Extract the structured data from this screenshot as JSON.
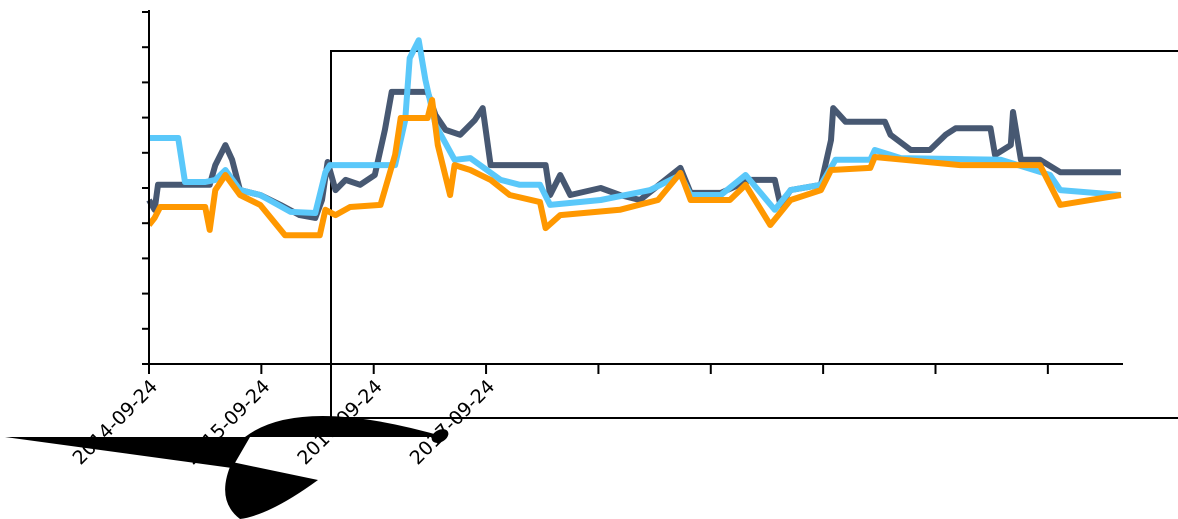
{
  "chart_data": {
    "type": "line",
    "xlim": [
      0,
      8.66
    ],
    "xticks": [
      {
        "value": 0,
        "label": "2014-09-24"
      },
      {
        "value": 1,
        "label": "2015-09-24"
      },
      {
        "value": 2,
        "label": "2016-09-24"
      },
      {
        "value": 3,
        "label": "2017-09-24"
      },
      4,
      5,
      6,
      7,
      8
    ],
    "ylim": [
      0,
      100
    ],
    "yticks": [
      0,
      10,
      20,
      30,
      40,
      50,
      60,
      70,
      80,
      90,
      100
    ],
    "ytick_labels_shown": false,
    "series": [
      {
        "color": "#475872",
        "x": [
          0,
          0.05,
          0.08,
          0.12,
          0.54,
          0.59,
          0.68,
          0.74,
          0.81,
          0.99,
          1.17,
          1.34,
          1.48,
          1.54,
          1.59,
          1.66,
          1.75,
          1.88,
          2.01,
          2.1,
          2.16,
          2.48,
          2.55,
          2.64,
          2.77,
          2.9,
          2.97,
          3.04,
          3.26,
          3.53,
          3.57,
          3.66,
          3.75,
          4.02,
          4.19,
          4.37,
          4.73,
          4.82,
          5.09,
          5.35,
          5.57,
          5.62,
          5.71,
          5.98,
          6.07,
          6.09,
          6.2,
          6.55,
          6.6,
          6.78,
          6.95,
          7.09,
          7.18,
          7.49,
          7.53,
          7.67,
          7.69,
          7.76,
          7.93,
          8.11,
          8.65
        ],
        "values": [
          46.6,
          43.8,
          50.9,
          50.9,
          50.9,
          56.5,
          62.2,
          58.0,
          49.4,
          48.0,
          45.2,
          42.3,
          41.5,
          46.6,
          57.4,
          49.4,
          52.3,
          50.9,
          53.7,
          66.5,
          77.3,
          77.3,
          70.7,
          66.5,
          65.1,
          69.3,
          72.7,
          56.5,
          56.5,
          56.5,
          48.0,
          53.7,
          48.0,
          50.0,
          48.0,
          46.6,
          55.7,
          48.6,
          48.6,
          52.3,
          52.3,
          45.2,
          49.4,
          50.9,
          63.6,
          72.7,
          68.8,
          68.8,
          65.1,
          60.8,
          60.8,
          65.1,
          67.0,
          67.0,
          59.4,
          62.2,
          71.6,
          58.0,
          58.0,
          54.5,
          54.5
        ]
      },
      {
        "color": "#5ac8fa",
        "x": [
          0,
          0.26,
          0.32,
          0.5,
          0.59,
          0.68,
          0.81,
          0.99,
          1.26,
          1.48,
          1.57,
          1.61,
          2.19,
          2.28,
          2.32,
          2.4,
          2.46,
          2.55,
          2.72,
          2.86,
          3.13,
          3.3,
          3.48,
          3.57,
          4.02,
          4.46,
          4.73,
          4.82,
          5.09,
          5.31,
          5.57,
          5.71,
          5.98,
          6.11,
          6.42,
          6.46,
          6.69,
          7.58,
          8.02,
          8.11,
          8.65
        ],
        "values": [
          64.2,
          64.2,
          51.7,
          51.7,
          52.3,
          55.1,
          49.4,
          48.0,
          43.2,
          42.9,
          54.5,
          56.5,
          56.5,
          69.3,
          86.9,
          92.0,
          80.7,
          67.9,
          58.0,
          58.5,
          52.3,
          50.9,
          50.9,
          45.2,
          46.6,
          49.4,
          53.7,
          48.0,
          48.0,
          53.7,
          43.8,
          49.4,
          50.9,
          58.0,
          58.0,
          60.8,
          58.5,
          58.0,
          53.7,
          49.4,
          48.0
        ]
      },
      {
        "color": "#ff9800",
        "x": [
          0,
          0.05,
          0.1,
          0.5,
          0.54,
          0.59,
          0.68,
          0.81,
          0.99,
          1.21,
          1.52,
          1.57,
          1.66,
          1.79,
          2.06,
          2.19,
          2.24,
          2.48,
          2.52,
          2.57,
          2.68,
          2.72,
          2.86,
          3.04,
          3.21,
          3.48,
          3.53,
          3.66,
          4.19,
          4.53,
          4.73,
          4.82,
          5.17,
          5.31,
          5.53,
          5.71,
          5.98,
          6.07,
          6.42,
          6.46,
          7.22,
          7.93,
          8.11,
          8.65
        ],
        "values": [
          39.5,
          41.5,
          44.6,
          44.6,
          38.1,
          49.4,
          53.7,
          48.0,
          45.2,
          36.6,
          36.6,
          43.8,
          42.3,
          44.6,
          45.2,
          59.4,
          69.9,
          69.9,
          75.0,
          62.2,
          48.0,
          56.5,
          55.1,
          52.3,
          48.0,
          46.0,
          38.6,
          42.3,
          43.8,
          46.6,
          54.3,
          46.6,
          46.6,
          50.9,
          39.5,
          46.6,
          49.4,
          55.1,
          55.7,
          58.8,
          56.5,
          56.5,
          45.2,
          48.0
        ]
      }
    ]
  }
}
